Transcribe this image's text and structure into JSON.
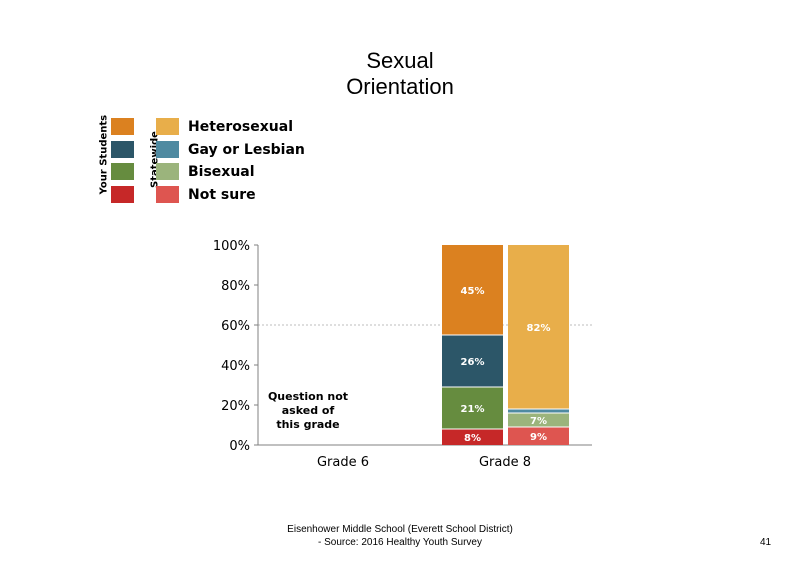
{
  "title_line1": "Sexual",
  "title_line2": "Orientation",
  "legend": {
    "your_students_label": "Your Students",
    "statewide_label": "Statewide",
    "items": [
      {
        "label": "Heterosexual",
        "your_color": "#DB8120",
        "state_color": "#E8AE4A"
      },
      {
        "label": "Gay or Lesbian",
        "your_color": "#2C5668",
        "state_color": "#4F8AA1"
      },
      {
        "label": "Bisexual",
        "your_color": "#668C3F",
        "state_color": "#9BB47C"
      },
      {
        "label": "Not sure",
        "your_color": "#C62828",
        "state_color": "#DE5550"
      }
    ]
  },
  "chart_data": {
    "type": "bar",
    "stacked": true,
    "categories": [
      "Grade 6",
      "Grade 8"
    ],
    "y_ticks": [
      "0%",
      "20%",
      "40%",
      "60%",
      "80%",
      "100%"
    ],
    "ylim": [
      0,
      100
    ],
    "reference_line": 60,
    "grade6_note": [
      "Question not",
      "asked of",
      "this grade"
    ],
    "bars": [
      {
        "category": "Grade 8",
        "group": "Your Students",
        "segments": [
          {
            "name": "Not sure",
            "value": 8,
            "label": "8%",
            "color": "#C62828"
          },
          {
            "name": "Bisexual",
            "value": 21,
            "label": "21%",
            "color": "#668C3F"
          },
          {
            "name": "Gay or Lesbian",
            "value": 26,
            "label": "26%",
            "color": "#2C5668"
          },
          {
            "name": "Heterosexual",
            "value": 45,
            "label": "45%",
            "color": "#DB8120"
          }
        ]
      },
      {
        "category": "Grade 8",
        "group": "Statewide",
        "segments": [
          {
            "name": "Not sure",
            "value": 9,
            "label": "9%",
            "color": "#DE5550"
          },
          {
            "name": "Bisexual",
            "value": 7,
            "label": "7%",
            "color": "#9BB47C"
          },
          {
            "name": "Gay or Lesbian",
            "value": 2,
            "label": "",
            "color": "#4F8AA1"
          },
          {
            "name": "Heterosexual",
            "value": 82,
            "label": "82%",
            "color": "#E8AE4A"
          }
        ]
      }
    ]
  },
  "footer_line1": "Eisenhower Middle School (Everett School District)",
  "footer_line2": "- Source: 2016 Healthy  Youth Survey",
  "page_number": "41"
}
